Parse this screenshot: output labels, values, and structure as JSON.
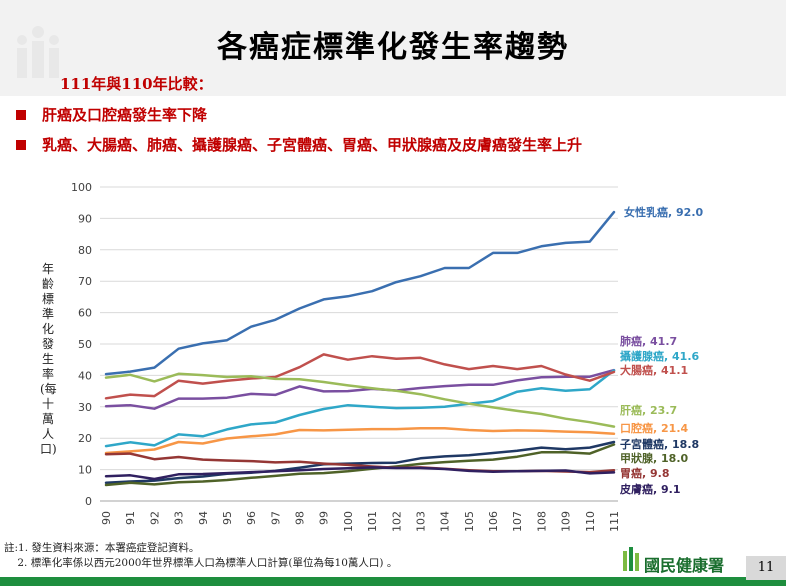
{
  "title": "各癌症標準化發生率趨勢",
  "comparison": "111年與110年比較：",
  "bullets": [
    "肝癌及口腔癌發生率下降",
    "乳癌、大腸癌、肺癌、攝護腺癌、子宮體癌、胃癌、甲狀腺癌及皮膚癌發生率上升"
  ],
  "notes": [
    "註:1. 發生資料來源：本署癌症登記資料。",
    "    2. 標準化率係以西元2000年世界標準人口為標準人口計算(單位為每10萬人口) 。"
  ],
  "brand": "國民健康署",
  "page_number": "11",
  "chart_data": {
    "type": "line",
    "ylabel": "年齡標準化發生率(每十萬人口)",
    "ylim": [
      0,
      100
    ],
    "yticks": [
      0,
      10,
      20,
      30,
      40,
      50,
      60,
      70,
      80,
      90,
      100
    ],
    "x": [
      "90",
      "91",
      "92",
      "93",
      "94",
      "95",
      "96",
      "97",
      "98",
      "99",
      "100",
      "101",
      "102",
      "103",
      "104",
      "105",
      "106",
      "107",
      "108",
      "109",
      "110",
      "111"
    ],
    "grid": "horizontal",
    "series": [
      {
        "name": "女性乳癌",
        "label": "女性乳癌, 92.0",
        "color": "#3a6fb0",
        "values": [
          40.4,
          41.2,
          42.5,
          48.5,
          50.2,
          51.2,
          55.5,
          57.7,
          61.3,
          64.2,
          65.2,
          66.8,
          69.7,
          71.6,
          74.2,
          74.2,
          79.0,
          79.0,
          81.1,
          82.2,
          82.6,
          92.0
        ]
      },
      {
        "name": "肺癌",
        "label": "肺癌, 41.7",
        "color": "#7a4fa0",
        "values": [
          30.2,
          30.5,
          29.4,
          32.6,
          32.6,
          32.9,
          34.1,
          33.8,
          36.5,
          34.9,
          35.0,
          35.7,
          35.2,
          36.0,
          36.6,
          37.0,
          37.0,
          38.4,
          39.4,
          39.6,
          39.6,
          41.7
        ]
      },
      {
        "name": "攝護腺癌",
        "label": "攝護腺癌, 41.6",
        "color": "#2fa7c8",
        "values": [
          17.5,
          18.7,
          17.7,
          21.2,
          20.6,
          22.8,
          24.4,
          25.0,
          27.4,
          29.3,
          30.5,
          30.0,
          29.6,
          29.7,
          30.0,
          31.0,
          31.8,
          34.8,
          35.9,
          35.1,
          35.6,
          41.6
        ]
      },
      {
        "name": "大腸癌",
        "label": "大腸癌, 41.1",
        "color": "#c0504d",
        "values": [
          32.7,
          33.9,
          33.4,
          38.3,
          37.4,
          38.3,
          39.0,
          39.5,
          42.6,
          46.7,
          45.0,
          46.1,
          45.3,
          45.6,
          43.5,
          42.0,
          43.0,
          42.0,
          43.0,
          40.3,
          38.3,
          41.1
        ]
      },
      {
        "name": "肝癌",
        "label": "肝癌, 23.7",
        "color": "#9bbb59",
        "values": [
          39.3,
          40.2,
          38.1,
          40.5,
          40.1,
          39.5,
          39.7,
          38.9,
          38.8,
          37.9,
          36.8,
          35.9,
          35.1,
          34.0,
          32.4,
          31.0,
          29.8,
          28.7,
          27.7,
          26.2,
          25.1,
          23.7
        ]
      },
      {
        "name": "口腔癌",
        "label": "口腔癌, 21.4",
        "color": "#f79646",
        "values": [
          15.3,
          15.8,
          16.4,
          18.8,
          18.3,
          19.9,
          20.6,
          21.2,
          22.6,
          22.5,
          22.7,
          22.9,
          22.9,
          23.2,
          23.2,
          22.6,
          22.3,
          22.5,
          22.4,
          22.1,
          21.9,
          21.4
        ]
      },
      {
        "name": "子宮體癌",
        "label": "子宮體癌, 18.8",
        "color": "#1f3864",
        "values": [
          5.8,
          6.2,
          6.5,
          7.3,
          7.8,
          8.7,
          9.0,
          9.6,
          10.6,
          11.7,
          11.9,
          12.1,
          12.2,
          13.6,
          14.2,
          14.6,
          15.3,
          16.0,
          17.0,
          16.5,
          17.0,
          18.8
        ]
      },
      {
        "name": "甲狀腺",
        "label": "甲狀腺, 18.0",
        "color": "#4f6228",
        "values": [
          5.1,
          5.8,
          5.3,
          6.0,
          6.2,
          6.7,
          7.4,
          8.0,
          8.7,
          8.9,
          9.5,
          10.3,
          11.0,
          11.8,
          12.4,
          12.8,
          13.2,
          14.1,
          15.5,
          15.5,
          15.1,
          18.0
        ]
      },
      {
        "name": "胃癌",
        "label": "胃癌, 9.8",
        "color": "#953735",
        "values": [
          14.9,
          15.1,
          13.3,
          14.0,
          13.2,
          12.9,
          12.7,
          12.3,
          12.5,
          11.9,
          11.5,
          11.0,
          10.6,
          10.7,
          10.3,
          9.8,
          9.5,
          9.5,
          9.6,
          9.4,
          9.2,
          9.8
        ]
      },
      {
        "name": "皮膚癌",
        "label": "皮膚癌, 9.1",
        "color": "#302060",
        "values": [
          7.9,
          8.2,
          7.0,
          8.5,
          8.6,
          8.9,
          9.2,
          9.5,
          9.8,
          10.2,
          10.4,
          10.7,
          10.5,
          10.5,
          10.2,
          9.6,
          9.3,
          9.5,
          9.6,
          9.7,
          8.8,
          9.1
        ]
      }
    ]
  }
}
